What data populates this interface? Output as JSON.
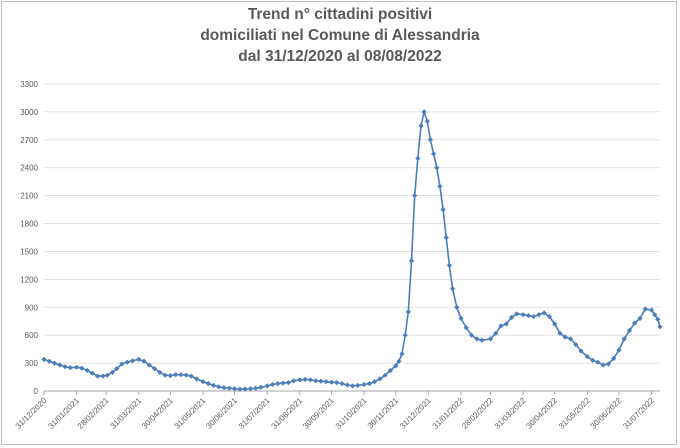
{
  "chart_data": {
    "type": "line",
    "title": [
      "Trend n° cittadini positivi",
      "domiciliati nel Comune di Alessandria",
      "dal 31/12/2020 al 08/08/2022"
    ],
    "xlabel": "",
    "ylabel": "",
    "ylim": [
      0,
      3300
    ],
    "yticks": [
      0,
      300,
      600,
      900,
      1200,
      1500,
      1800,
      2100,
      2400,
      2700,
      3000,
      3300
    ],
    "xlim": [
      "2020-12-31",
      "2022-08-08"
    ],
    "xticks": [
      "31/12/2020",
      "31/01/2021",
      "28/02/2021",
      "31/03/2021",
      "30/04/2021",
      "31/05/2021",
      "30/06/2021",
      "31/07/2021",
      "31/08/2021",
      "30/09/2021",
      "31/10/2021",
      "30/11/2021",
      "31/12/2021",
      "31/01/2022",
      "28/02/2022",
      "31/03/2022",
      "30/04/2022",
      "31/05/2022",
      "30/06/2022",
      "31/07/2022"
    ],
    "grid": "horizontal",
    "legend": "none",
    "colors": {
      "line": "#4a7ebb",
      "grid": "#d9d9d9",
      "text": "#595959",
      "axis": "#a6a6a6"
    },
    "series": [
      {
        "marker": "diamond",
        "points": [
          [
            "2020-12-31",
            340
          ],
          [
            "2021-01-05",
            320
          ],
          [
            "2021-01-10",
            300
          ],
          [
            "2021-01-15",
            280
          ],
          [
            "2021-01-20",
            260
          ],
          [
            "2021-01-25",
            250
          ],
          [
            "2021-01-31",
            255
          ],
          [
            "2021-02-05",
            245
          ],
          [
            "2021-02-10",
            220
          ],
          [
            "2021-02-15",
            190
          ],
          [
            "2021-02-20",
            160
          ],
          [
            "2021-02-25",
            160
          ],
          [
            "2021-03-01",
            170
          ],
          [
            "2021-03-06",
            200
          ],
          [
            "2021-03-10",
            240
          ],
          [
            "2021-03-15",
            290
          ],
          [
            "2021-03-20",
            310
          ],
          [
            "2021-03-25",
            325
          ],
          [
            "2021-03-31",
            340
          ],
          [
            "2021-04-05",
            320
          ],
          [
            "2021-04-10",
            280
          ],
          [
            "2021-04-15",
            240
          ],
          [
            "2021-04-20",
            200
          ],
          [
            "2021-04-25",
            170
          ],
          [
            "2021-04-30",
            165
          ],
          [
            "2021-05-05",
            175
          ],
          [
            "2021-05-10",
            175
          ],
          [
            "2021-05-15",
            170
          ],
          [
            "2021-05-20",
            160
          ],
          [
            "2021-05-25",
            130
          ],
          [
            "2021-05-31",
            100
          ],
          [
            "2021-06-05",
            80
          ],
          [
            "2021-06-10",
            60
          ],
          [
            "2021-06-15",
            45
          ],
          [
            "2021-06-20",
            35
          ],
          [
            "2021-06-25",
            30
          ],
          [
            "2021-06-30",
            25
          ],
          [
            "2021-07-05",
            20
          ],
          [
            "2021-07-10",
            22
          ],
          [
            "2021-07-15",
            25
          ],
          [
            "2021-07-20",
            30
          ],
          [
            "2021-07-25",
            40
          ],
          [
            "2021-07-31",
            55
          ],
          [
            "2021-08-05",
            70
          ],
          [
            "2021-08-10",
            80
          ],
          [
            "2021-08-15",
            85
          ],
          [
            "2021-08-20",
            90
          ],
          [
            "2021-08-25",
            110
          ],
          [
            "2021-08-31",
            120
          ],
          [
            "2021-09-05",
            125
          ],
          [
            "2021-09-10",
            120
          ],
          [
            "2021-09-15",
            110
          ],
          [
            "2021-09-20",
            105
          ],
          [
            "2021-09-25",
            100
          ],
          [
            "2021-09-30",
            95
          ],
          [
            "2021-10-05",
            90
          ],
          [
            "2021-10-10",
            80
          ],
          [
            "2021-10-15",
            65
          ],
          [
            "2021-10-20",
            55
          ],
          [
            "2021-10-25",
            60
          ],
          [
            "2021-10-31",
            70
          ],
          [
            "2021-11-05",
            80
          ],
          [
            "2021-11-10",
            100
          ],
          [
            "2021-11-15",
            130
          ],
          [
            "2021-11-20",
            170
          ],
          [
            "2021-11-25",
            220
          ],
          [
            "2021-11-30",
            270
          ],
          [
            "2021-12-03",
            320
          ],
          [
            "2021-12-06",
            400
          ],
          [
            "2021-12-09",
            600
          ],
          [
            "2021-12-12",
            850
          ],
          [
            "2021-12-15",
            1400
          ],
          [
            "2021-12-18",
            2100
          ],
          [
            "2021-12-21",
            2500
          ],
          [
            "2021-12-24",
            2850
          ],
          [
            "2021-12-27",
            3000
          ],
          [
            "2021-12-30",
            2900
          ],
          [
            "2022-01-02",
            2700
          ],
          [
            "2022-01-05",
            2550
          ],
          [
            "2022-01-08",
            2400
          ],
          [
            "2022-01-11",
            2200
          ],
          [
            "2022-01-14",
            1950
          ],
          [
            "2022-01-17",
            1650
          ],
          [
            "2022-01-20",
            1350
          ],
          [
            "2022-01-23",
            1100
          ],
          [
            "2022-01-27",
            900
          ],
          [
            "2022-01-31",
            780
          ],
          [
            "2022-02-05",
            680
          ],
          [
            "2022-02-10",
            600
          ],
          [
            "2022-02-15",
            560
          ],
          [
            "2022-02-20",
            545
          ],
          [
            "2022-02-28",
            560
          ],
          [
            "2022-03-05",
            620
          ],
          [
            "2022-03-10",
            700
          ],
          [
            "2022-03-15",
            720
          ],
          [
            "2022-03-20",
            790
          ],
          [
            "2022-03-25",
            830
          ],
          [
            "2022-03-31",
            820
          ],
          [
            "2022-04-05",
            810
          ],
          [
            "2022-04-10",
            800
          ],
          [
            "2022-04-15",
            820
          ],
          [
            "2022-04-20",
            840
          ],
          [
            "2022-04-25",
            800
          ],
          [
            "2022-04-30",
            720
          ],
          [
            "2022-05-05",
            620
          ],
          [
            "2022-05-10",
            580
          ],
          [
            "2022-05-15",
            560
          ],
          [
            "2022-05-20",
            500
          ],
          [
            "2022-05-25",
            430
          ],
          [
            "2022-05-31",
            370
          ],
          [
            "2022-06-05",
            330
          ],
          [
            "2022-06-10",
            310
          ],
          [
            "2022-06-15",
            280
          ],
          [
            "2022-06-20",
            290
          ],
          [
            "2022-06-25",
            350
          ],
          [
            "2022-06-30",
            440
          ],
          [
            "2022-07-05",
            560
          ],
          [
            "2022-07-10",
            650
          ],
          [
            "2022-07-15",
            730
          ],
          [
            "2022-07-20",
            780
          ],
          [
            "2022-07-25",
            880
          ],
          [
            "2022-07-31",
            870
          ],
          [
            "2022-08-03",
            820
          ],
          [
            "2022-08-06",
            770
          ],
          [
            "2022-08-08",
            690
          ]
        ]
      }
    ]
  }
}
